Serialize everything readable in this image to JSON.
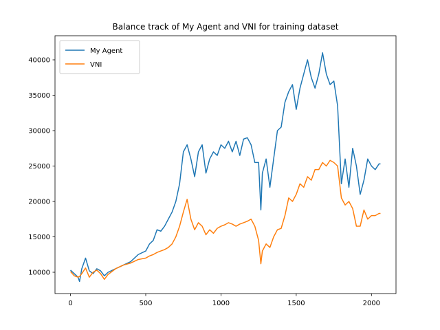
{
  "chart_data": {
    "type": "line",
    "title": "Balance track of My Agent and VNI for training dataset",
    "x": [
      0,
      25,
      50,
      60,
      75,
      100,
      125,
      150,
      175,
      200,
      225,
      250,
      300,
      350,
      400,
      450,
      500,
      525,
      550,
      575,
      600,
      625,
      650,
      675,
      700,
      725,
      750,
      775,
      800,
      825,
      850,
      875,
      900,
      925,
      950,
      975,
      1000,
      1025,
      1050,
      1075,
      1100,
      1125,
      1150,
      1175,
      1200,
      1225,
      1250,
      1265,
      1275,
      1300,
      1325,
      1350,
      1375,
      1400,
      1425,
      1450,
      1475,
      1500,
      1525,
      1550,
      1575,
      1600,
      1625,
      1650,
      1675,
      1700,
      1725,
      1750,
      1775,
      1800,
      1825,
      1850,
      1875,
      1900,
      1925,
      1950,
      1975,
      2000,
      2025,
      2050,
      2060
    ],
    "series": [
      {
        "name": "My Agent",
        "color": "#1f77b4",
        "values": [
          10300,
          9800,
          9300,
          8700,
          10500,
          12000,
          10200,
          9800,
          10500,
          10200,
          9500,
          10000,
          10500,
          11000,
          11500,
          12500,
          13000,
          14000,
          14500,
          16000,
          15800,
          16500,
          17500,
          18500,
          20000,
          22500,
          27000,
          28000,
          26000,
          23500,
          27000,
          28000,
          24000,
          26000,
          27000,
          26500,
          28000,
          27500,
          28500,
          27000,
          28500,
          26500,
          28800,
          29000,
          28000,
          25500,
          25500,
          18800,
          24000,
          26000,
          22000,
          26000,
          30000,
          30500,
          34000,
          35500,
          36500,
          33000,
          36000,
          38000,
          40000,
          37500,
          36000,
          38000,
          41000,
          38000,
          36500,
          37000,
          33500,
          22500,
          26000,
          22000,
          27500,
          25000,
          21000,
          23000,
          26000,
          25000,
          24500,
          25300,
          25300
        ]
      },
      {
        "name": "VNI",
        "color": "#ff7f0e",
        "values": [
          10100,
          9500,
          9300,
          9400,
          9800,
          10600,
          9300,
          10000,
          10300,
          9800,
          9000,
          9700,
          10500,
          11000,
          11300,
          11800,
          12000,
          12300,
          12500,
          12800,
          13000,
          13200,
          13500,
          14000,
          15000,
          16500,
          18500,
          20300,
          17500,
          16000,
          17000,
          16500,
          15300,
          16000,
          15500,
          16200,
          16500,
          16700,
          17000,
          16800,
          16500,
          16800,
          17000,
          17200,
          17500,
          16500,
          14500,
          11200,
          13000,
          14000,
          13500,
          15000,
          16000,
          16200,
          18000,
          20500,
          20000,
          21000,
          22500,
          22000,
          23500,
          23000,
          24500,
          24500,
          25500,
          25000,
          25800,
          25500,
          25000,
          20500,
          19500,
          20000,
          19000,
          16500,
          16500,
          18800,
          17500,
          18000,
          18000,
          18300,
          18300
        ]
      }
    ],
    "xlim": [
      -103,
      2163
    ],
    "ylim": [
      6990,
      43400
    ],
    "xticks": [
      0,
      500,
      1000,
      1500,
      2000
    ],
    "yticks": [
      10000,
      15000,
      20000,
      25000,
      30000,
      35000,
      40000
    ],
    "legend": "upper left",
    "grid": false
  }
}
